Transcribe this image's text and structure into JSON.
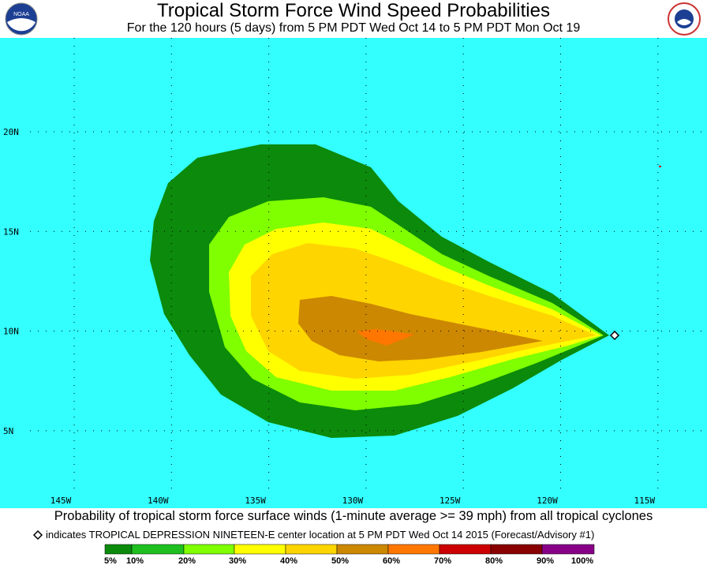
{
  "header": {
    "title": "Tropical Storm Force Wind Speed Probabilities",
    "subtitle": "For the 120 hours (5 days) from 5 PM PDT Wed Oct 14 to 5 PM PDT Mon Oct 19"
  },
  "map": {
    "lat_labels": [
      "20N",
      "15N",
      "10N",
      "5N"
    ],
    "lon_labels": [
      "145W",
      "140W",
      "135W",
      "130W",
      "125W",
      "120W",
      "115W"
    ]
  },
  "footer": {
    "caption": "Probability of tropical storm force surface winds (1-minute average >= 39 mph) from all tropical cyclones",
    "marker_note": "indicates TROPICAL DEPRESSION NINETEEN-E center location at 5 PM PDT Wed Oct 14 2015 (Forecast/Advisory #1)"
  },
  "legend": {
    "labels": [
      "5%",
      "10%",
      "20%",
      "30%",
      "40%",
      "50%",
      "60%",
      "70%",
      "80%",
      "90%",
      "100%"
    ],
    "colors": [
      "#0b8a0b",
      "#1fbf1f",
      "#80ff00",
      "#ffff00",
      "#ffd500",
      "#cc8800",
      "#ff7700",
      "#cc0000",
      "#880000",
      "#880088"
    ]
  }
}
